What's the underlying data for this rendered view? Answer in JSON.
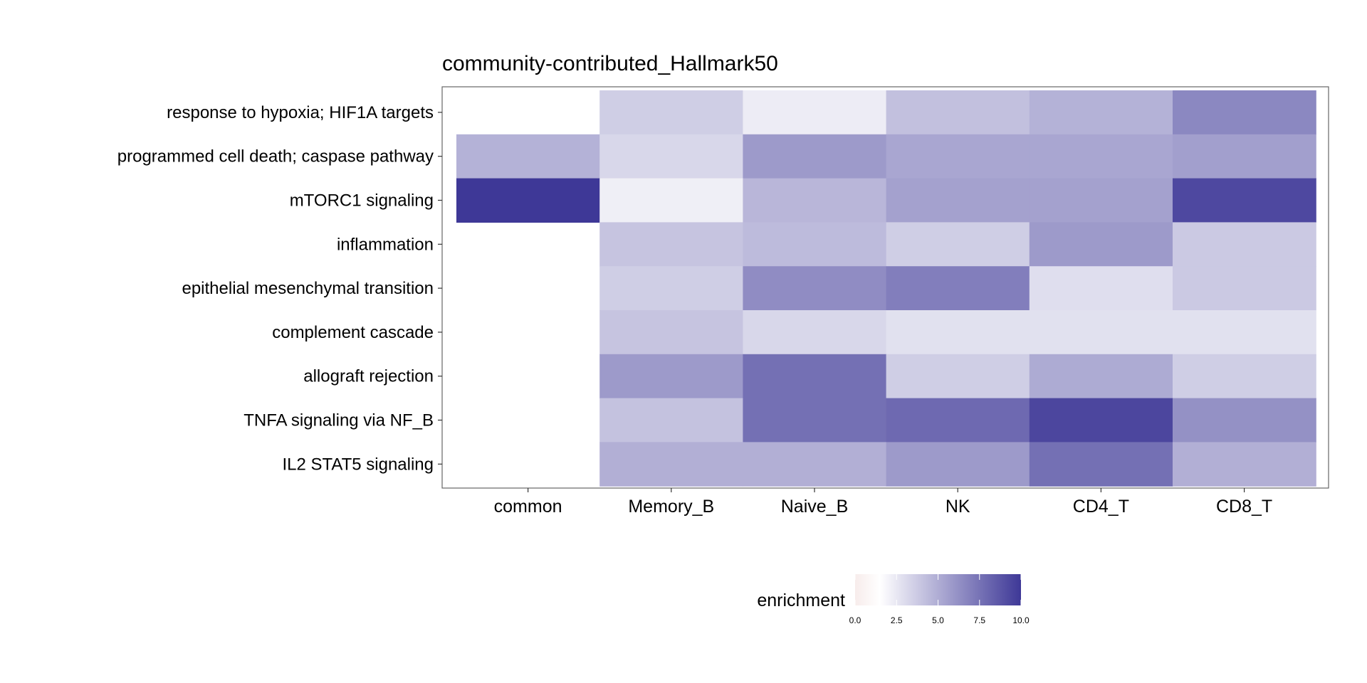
{
  "chart_data": {
    "type": "heatmap",
    "title": "community-contributed_Hallmark50",
    "columns": [
      "common",
      "Memory_B",
      "Naive_B",
      "NK",
      "CD4_T",
      "CD8_T"
    ],
    "rows": [
      "response to hypoxia; HIF1A targets",
      "programmed cell death; caspase pathway",
      "mTORC1 signaling",
      "inflammation",
      "epithelial mesenchymal transition",
      "complement cascade",
      "allograft rejection",
      "TNFA signaling via NF_B",
      "IL2 STAT5 signaling"
    ],
    "values": [
      [
        null,
        3.6,
        2.3,
        4.2,
        4.8,
        6.6
      ],
      [
        4.8,
        3.2,
        5.8,
        5.3,
        5.3,
        5.6
      ],
      [
        10.0,
        2.2,
        4.6,
        5.5,
        5.5,
        9.3
      ],
      [
        null,
        4.0,
        4.4,
        3.6,
        5.8,
        3.8
      ],
      [
        null,
        3.6,
        6.4,
        7.0,
        2.9,
        3.8
      ],
      [
        null,
        4.0,
        3.2,
        2.8,
        2.8,
        2.8
      ],
      [
        null,
        5.8,
        7.6,
        3.6,
        5.1,
        3.6
      ],
      [
        null,
        4.1,
        7.6,
        7.9,
        9.4,
        6.2
      ],
      [
        null,
        4.9,
        4.9,
        5.8,
        7.6,
        4.9
      ]
    ],
    "legend": {
      "title": "enrichment",
      "ticks": [
        0.0,
        2.5,
        5.0,
        7.5,
        10.0
      ],
      "tick_labels": [
        "0.0",
        "2.5",
        "5.0",
        "7.5",
        "10.0"
      ],
      "range": [
        0,
        10
      ],
      "colors": [
        "#f7eceb",
        "#ffffff",
        "#3e3897"
      ],
      "color_stops": [
        0,
        0.15,
        1
      ]
    }
  }
}
